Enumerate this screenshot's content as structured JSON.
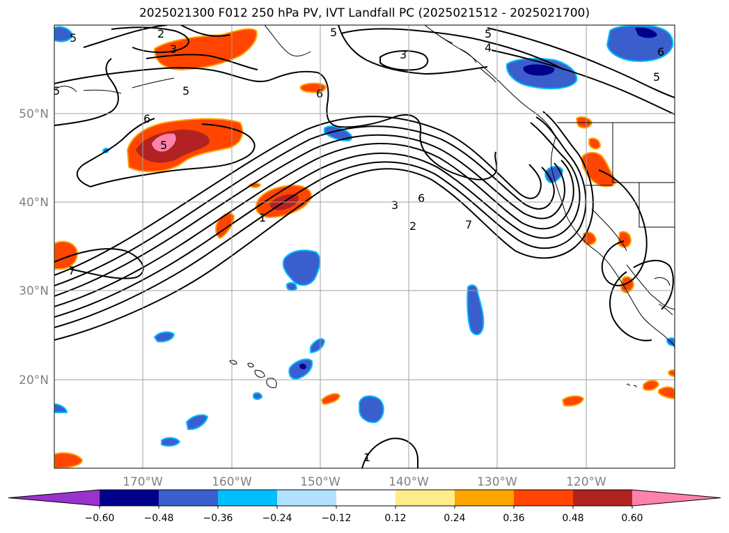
{
  "title": "2025021300 F012 250 hPa PV, IVT Landfall PC (2025021512 - 2025021700)",
  "map": {
    "lat_labels": [
      "50°N",
      "40°N",
      "30°N",
      "20°N"
    ],
    "lon_labels": [
      "170°W",
      "160°W",
      "150°W",
      "140°W",
      "130°W",
      "120°W"
    ],
    "contour_labels": [
      "2",
      "3",
      "5",
      "5",
      "4",
      "5",
      "3",
      "6",
      "5",
      "6",
      "5",
      "6",
      "5",
      "3",
      "6",
      "2",
      "7",
      "1",
      "7",
      "1",
      "5"
    ]
  },
  "colorbar": {
    "ticks": [
      "−0.60",
      "−0.48",
      "−0.36",
      "−0.24",
      "−0.12",
      "0.12",
      "0.24",
      "0.36",
      "0.48",
      "0.60"
    ],
    "colors": [
      "#9a32cd",
      "#00008b",
      "#3a5fcd",
      "#00bfff",
      "#b0e2ff",
      "#ffffff",
      "#ffec8b",
      "#ffa500",
      "#ff4500",
      "#b22222",
      "#ff82ab"
    ]
  }
}
